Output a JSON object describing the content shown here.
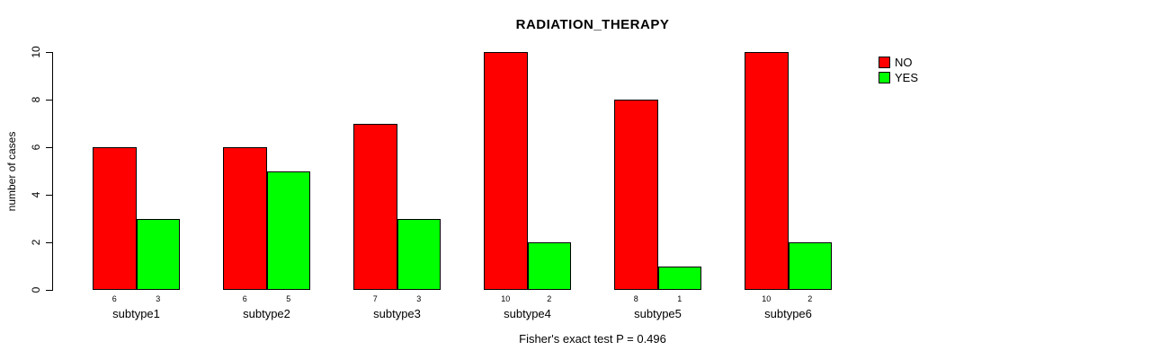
{
  "chart_data": {
    "type": "bar",
    "title": "RADIATION_THERAPY",
    "ylabel": "number of cases",
    "xlabel": "",
    "categories": [
      "subtype1",
      "subtype2",
      "subtype3",
      "subtype4",
      "subtype5",
      "subtype6"
    ],
    "series": [
      {
        "name": "NO",
        "color": "#ff0000",
        "values": [
          6,
          6,
          7,
          10,
          8,
          10
        ]
      },
      {
        "name": "YES",
        "color": "#00ff00",
        "values": [
          3,
          5,
          3,
          2,
          1,
          2
        ]
      }
    ],
    "bar_value_labels": {
      "NO": [
        6,
        6,
        7,
        10,
        8,
        10
      ],
      "YES": [
        3,
        5,
        3,
        2,
        1,
        2
      ]
    },
    "ylim": [
      0,
      10
    ],
    "yticks": [
      0,
      2,
      4,
      6,
      8,
      10
    ],
    "grid": false,
    "legend_position": "top-right",
    "annotation": "Fisher's exact test P = 0.496",
    "colors": {
      "axis": "#000000",
      "text": "#000000",
      "background": "#ffffff",
      "bar_no": "#ff0000",
      "bar_yes": "#00ff00"
    }
  }
}
